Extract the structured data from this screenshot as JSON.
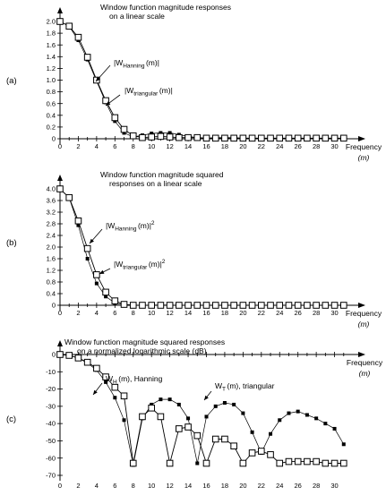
{
  "chart_data": [
    {
      "panel_label": "(a)",
      "type": "line",
      "title_lines": [
        "Window function magnitude responses",
        "on a linear scale"
      ],
      "xlabel": "Frequency",
      "xlabel_unit": "(m)",
      "xlim": [
        0,
        32
      ],
      "ylim": [
        0,
        2.0
      ],
      "x_ticks": [
        "0",
        "2",
        "4",
        "6",
        "8",
        "10",
        "12",
        "14",
        "16",
        "18",
        "20",
        "22",
        "24",
        "26",
        "28",
        "30"
      ],
      "y_ticks": [
        "0",
        "0.2",
        "0.4",
        "0.6",
        "0.8",
        "1.0",
        "1.2",
        "1.4",
        "1.6",
        "1.8",
        "2.0"
      ],
      "x": [
        0,
        1,
        2,
        3,
        4,
        5,
        6,
        7,
        8,
        9,
        10,
        11,
        12,
        13,
        14,
        15,
        16,
        17,
        18,
        19,
        20,
        21,
        22,
        23,
        24,
        25,
        26,
        27,
        28,
        29,
        30,
        31
      ],
      "series": [
        {
          "marker": "filled-square",
          "values": [
            2.0,
            1.92,
            1.68,
            1.35,
            0.98,
            0.62,
            0.3,
            0.1,
            0.03,
            0.06,
            0.09,
            0.1,
            0.1,
            0.07,
            0.04,
            0.02,
            0.01,
            0.02,
            0.02,
            0.02,
            0.01,
            0.01,
            0.01,
            0.01,
            0.01,
            0.01,
            0.01,
            0.01,
            0.01,
            0.01,
            0.01,
            0.01
          ]
        },
        {
          "marker": "open-square",
          "values": [
            2.0,
            1.92,
            1.73,
            1.39,
            1.0,
            0.65,
            0.36,
            0.16,
            0.05,
            0.02,
            0.03,
            0.04,
            0.03,
            0.02,
            0.02,
            0.02,
            0.01,
            0.01,
            0.01,
            0.01,
            0.01,
            0.01,
            0.01,
            0.01,
            0.01,
            0.01,
            0.01,
            0.01,
            0.01,
            0.01,
            0.01,
            0.01
          ]
        }
      ],
      "annotations": [
        {
          "prefix": "|W",
          "sub": "Hanning",
          "suffix": "(m)|",
          "sup": ""
        },
        {
          "prefix": "|W",
          "sub": "triangular",
          "suffix": "(m)|",
          "sup": ""
        }
      ]
    },
    {
      "panel_label": "(b)",
      "type": "line",
      "title_lines": [
        "Window function magnitude squared",
        "responses on a linear scale"
      ],
      "xlabel": "Frequency",
      "xlabel_unit": "(m)",
      "xlim": [
        0,
        32
      ],
      "ylim": [
        0,
        4.0
      ],
      "x_ticks": [
        "0",
        "2",
        "4",
        "6",
        "8",
        "10",
        "12",
        "14",
        "16",
        "18",
        "20",
        "22",
        "24",
        "26",
        "28",
        "30"
      ],
      "y_ticks": [
        "0",
        "0.4",
        "0.8",
        "1.2",
        "1.6",
        "2.0",
        "2.4",
        "2.8",
        "3.2",
        "3.6",
        "4.0"
      ],
      "x": [
        0,
        1,
        2,
        3,
        4,
        5,
        6,
        7,
        8,
        9,
        10,
        11,
        12,
        13,
        14,
        15,
        16,
        17,
        18,
        19,
        20,
        21,
        22,
        23,
        24,
        25,
        26,
        27,
        28,
        29,
        30,
        31
      ],
      "series": [
        {
          "marker": "filled-square",
          "values": [
            4.0,
            3.7,
            2.75,
            1.6,
            0.75,
            0.3,
            0.08,
            0.01,
            0.0,
            0.0,
            0.01,
            0.01,
            0.01,
            0.0,
            0.0,
            0.0,
            0.0,
            0.0,
            0.0,
            0.0,
            0.0,
            0.0,
            0.0,
            0.0,
            0.0,
            0.0,
            0.0,
            0.0,
            0.0,
            0.0,
            0.0,
            0.0
          ]
        },
        {
          "marker": "open-square",
          "values": [
            4.0,
            3.7,
            2.9,
            1.95,
            1.05,
            0.45,
            0.15,
            0.03,
            0.0,
            0.0,
            0.0,
            0.0,
            0.0,
            0.0,
            0.0,
            0.0,
            0.0,
            0.0,
            0.0,
            0.0,
            0.0,
            0.0,
            0.0,
            0.0,
            0.0,
            0.0,
            0.0,
            0.0,
            0.0,
            0.0,
            0.0,
            0.0
          ]
        }
      ],
      "annotations": [
        {
          "prefix": "|W",
          "sub": "Hanning",
          "suffix": "(m)|",
          "sup": "2"
        },
        {
          "prefix": "|W",
          "sub": "triangular",
          "suffix": "(m)|",
          "sup": "2"
        }
      ]
    },
    {
      "panel_label": "(c)",
      "type": "line",
      "title_lines": [
        "Window function magnitude squared responses",
        "on a normalized logarithmic scale (dB)"
      ],
      "xlabel": "Frequency",
      "xlabel_unit": "(m)",
      "xlim": [
        0,
        32
      ],
      "ylim": [
        -70,
        0
      ],
      "x_ticks": [
        "0",
        "2",
        "4",
        "6",
        "8",
        "10",
        "12",
        "14",
        "16",
        "18",
        "20",
        "22",
        "24",
        "26",
        "28",
        "30"
      ],
      "y_ticks": [
        "-70",
        "-60",
        "-50",
        "-40",
        "-30",
        "-20",
        "-10",
        "0"
      ],
      "x": [
        0,
        1,
        2,
        3,
        4,
        5,
        6,
        7,
        8,
        9,
        10,
        11,
        12,
        13,
        14,
        15,
        16,
        17,
        18,
        19,
        20,
        21,
        22,
        23,
        24,
        25,
        26,
        27,
        28,
        29,
        30,
        31
      ],
      "series": [
        {
          "marker": "filled-square",
          "values": [
            0,
            -0.5,
            -2,
            -5,
            -9,
            -16,
            -25,
            -38,
            -64,
            -37,
            -29,
            -26,
            -26,
            -29,
            -37,
            -63,
            -36,
            -30,
            -28,
            -29,
            -34,
            -45,
            -57,
            -46,
            -38,
            -34,
            -33,
            -35,
            -37,
            -40,
            -43,
            -52
          ]
        },
        {
          "marker": "open-square",
          "values": [
            0,
            -0.5,
            -2,
            -4.5,
            -8,
            -13,
            -19,
            -24,
            -63,
            -36,
            -31,
            -36,
            -63,
            -43,
            -42,
            -47,
            -63,
            -49,
            -49,
            -53,
            -63,
            -57,
            -56,
            -58,
            -63,
            -62,
            -62,
            -62,
            -62,
            -63,
            -63,
            -63
          ]
        }
      ],
      "annotations": [
        {
          "prefix": "W",
          "sub": "H",
          "suffix": "(m), Hanning",
          "sup": ""
        },
        {
          "prefix": "W",
          "sub": "T",
          "suffix": "(m), triangular",
          "sup": ""
        }
      ]
    }
  ]
}
